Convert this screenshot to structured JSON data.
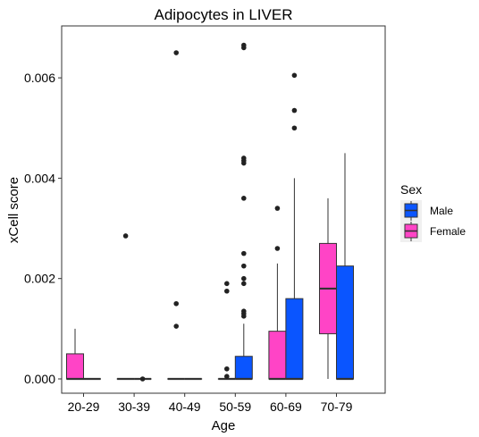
{
  "chart_data": {
    "type": "boxplot",
    "title": "Adipocytes in LIVER",
    "xlabel": "Age",
    "ylabel": "xCell score",
    "categories": [
      "20-29",
      "30-39",
      "40-49",
      "50-59",
      "60-69",
      "70-79"
    ],
    "ylim": [
      -0.00026,
      0.007
    ],
    "yticks": [
      0.0,
      0.002,
      0.004,
      0.006
    ],
    "ytick_labels": [
      "0.000",
      "0.002",
      "0.004",
      "0.006"
    ],
    "grid": false,
    "legend": {
      "title": "Sex",
      "placement": "right",
      "entries": [
        {
          "name": "Male",
          "color": "#0a55ff"
        },
        {
          "name": "Female",
          "color": "#ff44c6"
        }
      ]
    },
    "series": [
      {
        "name": "Female",
        "color": "#ff44c6",
        "boxes": [
          {
            "category": "20-29",
            "min": 0.0,
            "q1": 0.0,
            "median": 0.0,
            "q3": 0.0005,
            "max": 0.001,
            "outliers": []
          },
          {
            "category": "30-39",
            "min": 0.0,
            "q1": 0.0,
            "median": 0.0,
            "q3": 0.0,
            "max": 0.0,
            "outliers": [
              0.00285
            ]
          },
          {
            "category": "40-49",
            "min": 0.0,
            "q1": 0.0,
            "median": 0.0,
            "q3": 0.0,
            "max": 0.0,
            "outliers": [
              0.0065,
              0.0015,
              0.00105
            ]
          },
          {
            "category": "50-59",
            "min": 0.0,
            "q1": 0.0,
            "median": 0.0,
            "q3": 0.0,
            "max": 0.0,
            "outliers": [
              0.0019,
              0.00175,
              0.0002,
              5e-05
            ]
          },
          {
            "category": "60-69",
            "min": 0.0,
            "q1": 0.0,
            "median": 0.0,
            "q3": 0.00095,
            "max": 0.0023,
            "outliers": [
              0.0034,
              0.0026
            ]
          },
          {
            "category": "70-79",
            "min": 0.0,
            "q1": 0.0009,
            "median": 0.0018,
            "q3": 0.0027,
            "max": 0.0036,
            "outliers": []
          }
        ]
      },
      {
        "name": "Male",
        "color": "#0a55ff",
        "boxes": [
          {
            "category": "20-29",
            "min": 0.0,
            "q1": 0.0,
            "median": 0.0,
            "q3": 0.0,
            "max": 0.0,
            "outliers": []
          },
          {
            "category": "30-39",
            "min": 0.0,
            "q1": 0.0,
            "median": 0.0,
            "q3": 0.0,
            "max": 0.0,
            "outliers": [
              0.0
            ]
          },
          {
            "category": "40-49",
            "min": 0.0,
            "q1": 0.0,
            "median": 0.0,
            "q3": 0.0,
            "max": 0.0,
            "outliers": []
          },
          {
            "category": "50-59",
            "min": 0.0,
            "q1": 0.0,
            "median": 0.0,
            "q3": 0.00045,
            "max": 0.0011,
            "outliers": [
              0.00665,
              0.0066,
              0.0044,
              0.00435,
              0.0043,
              0.0036,
              0.0025,
              0.00225,
              0.002,
              0.0019,
              0.00135,
              0.0013,
              0.00125
            ]
          },
          {
            "category": "60-69",
            "min": 0.0,
            "q1": 0.0,
            "median": 0.0,
            "q3": 0.0016,
            "max": 0.004,
            "outliers": [
              0.00605,
              0.00535,
              0.005
            ]
          },
          {
            "category": "70-79",
            "min": 0.0,
            "q1": 0.0,
            "median": 0.0,
            "q3": 0.00225,
            "max": 0.0045,
            "outliers": []
          }
        ]
      }
    ]
  }
}
